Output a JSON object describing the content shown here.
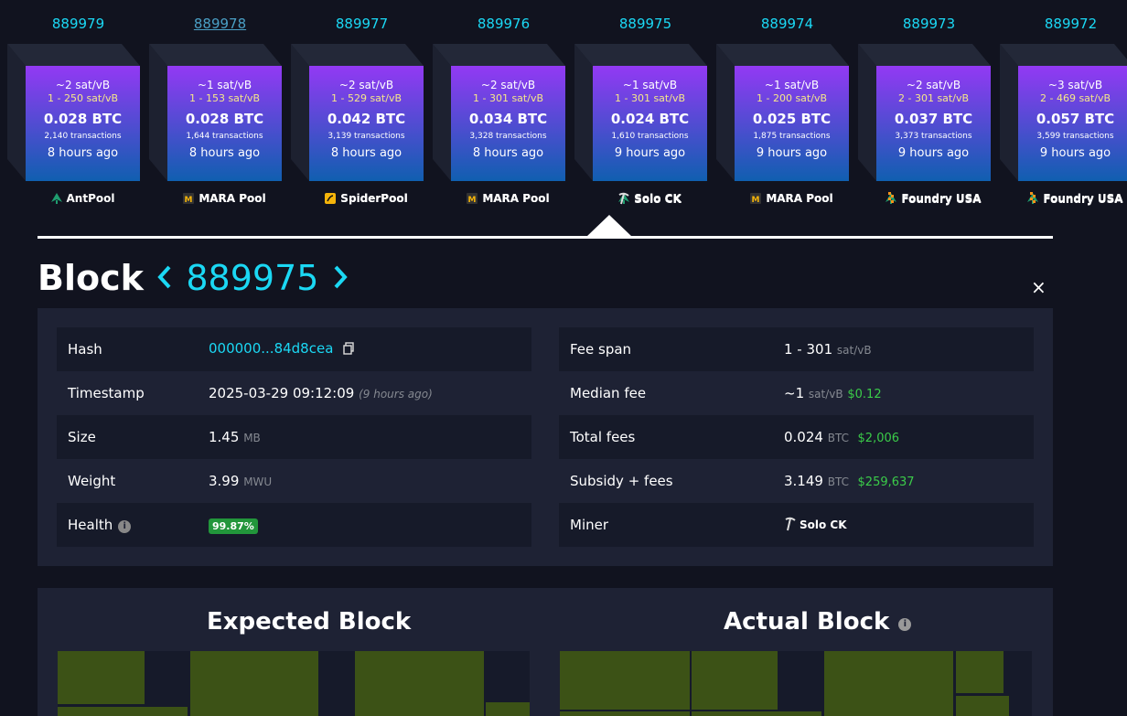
{
  "blocks": [
    {
      "height": "889979",
      "fee": "~2 sat/vB",
      "range": "1 - 250 sat/vB",
      "size": "0.028 BTC",
      "tx": "2,140 transactions",
      "time": "8 hours ago",
      "pool": "AntPool",
      "icon": "antpool-icon"
    },
    {
      "height": "889978",
      "fee": "~1 sat/vB",
      "range": "1 - 153 sat/vB",
      "size": "0.028 BTC",
      "tx": "1,644 transactions",
      "time": "8 hours ago",
      "pool": "MARA Pool",
      "icon": "mara-pool-icon"
    },
    {
      "height": "889977",
      "fee": "~2 sat/vB",
      "range": "1 - 529 sat/vB",
      "size": "0.042 BTC",
      "tx": "3,139 transactions",
      "time": "8 hours ago",
      "pool": "SpiderPool",
      "icon": "spiderpool-icon"
    },
    {
      "height": "889976",
      "fee": "~2 sat/vB",
      "range": "1 - 301 sat/vB",
      "size": "0.034 BTC",
      "tx": "3,328 transactions",
      "time": "8 hours ago",
      "pool": "MARA Pool",
      "icon": "mara-pool-icon"
    },
    {
      "height": "889975",
      "fee": "~1 sat/vB",
      "range": "1 - 301 sat/vB",
      "size": "0.024 BTC",
      "tx": "1,610 transactions",
      "time": "9 hours ago",
      "pool": "Solo CK",
      "icon": "pickaxe-icon"
    },
    {
      "height": "889974",
      "fee": "~1 sat/vB",
      "range": "1 - 200 sat/vB",
      "size": "0.025 BTC",
      "tx": "1,875 transactions",
      "time": "9 hours ago",
      "pool": "MARA Pool",
      "icon": "mara-pool-icon"
    },
    {
      "height": "889973",
      "fee": "~2 sat/vB",
      "range": "2 - 301 sat/vB",
      "size": "0.037 BTC",
      "tx": "3,373 transactions",
      "time": "9 hours ago",
      "pool": "Foundry USA",
      "icon": "foundry-usa-icon"
    },
    {
      "height": "889972",
      "fee": "~3 sat/vB",
      "range": "2 - 469 sat/vB",
      "size": "0.057 BTC",
      "tx": "3,599 transactions",
      "time": "9 hours ago",
      "pool": "Foundry USA",
      "icon": "foundry-usa-icon"
    }
  ],
  "header": {
    "title": "Block",
    "height": "889975",
    "prev_icon": "chevron-left-icon",
    "next_icon": "chevron-right-icon",
    "close": "×"
  },
  "left_table": {
    "hash_label": "Hash",
    "hash_value": "000000...84d8cea",
    "timestamp_label": "Timestamp",
    "timestamp_value": "2025-03-29 09:12:09",
    "timestamp_ago": "(9 hours ago)",
    "size_label": "Size",
    "size_value": "1.45",
    "size_unit": "MB",
    "weight_label": "Weight",
    "weight_value": "3.99",
    "weight_unit": "MWU",
    "health_label": "Health",
    "health_value": "99.87%"
  },
  "right_table": {
    "fee_span_label": "Fee span",
    "fee_span_value": "1 - 301",
    "fee_span_unit": "sat/vB",
    "median_fee_label": "Median fee",
    "median_fee_value": "~1",
    "median_fee_unit": "sat/vB",
    "median_fee_usd": "$0.12",
    "total_fees_label": "Total fees",
    "total_fees_value": "0.024",
    "total_fees_unit": "BTC",
    "total_fees_usd": "$2,006",
    "subsidy_label": "Subsidy + fees",
    "subsidy_value": "3.149",
    "subsidy_unit": "BTC",
    "subsidy_usd": "$259,637",
    "miner_label": "Miner",
    "miner_value": "Solo CK"
  },
  "visual": {
    "expected_title": "Expected Block",
    "actual_title": "Actual Block"
  },
  "colors": {
    "accent": "#1bd8f4",
    "green": "#3bcc49",
    "block_top": "#9339f4",
    "block_bottom": "#105fb0",
    "tx_fill": "#3c5216"
  }
}
